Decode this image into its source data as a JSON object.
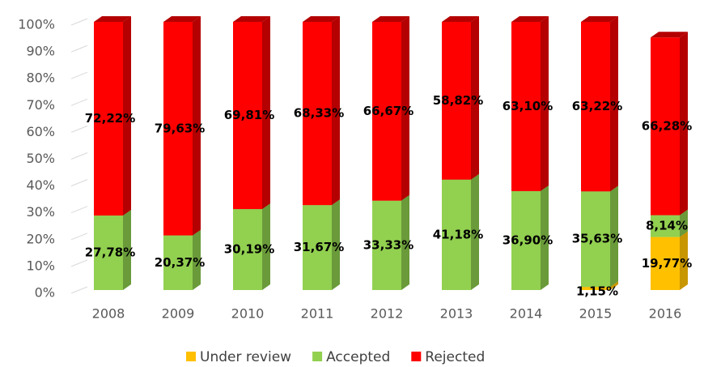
{
  "chart_data": {
    "type": "stacked_bar_3d",
    "categories": [
      "2008",
      "2009",
      "2010",
      "2011",
      "2012",
      "2013",
      "2014",
      "2015",
      "2016"
    ],
    "series": [
      {
        "name": "Under review",
        "color": "#ffc000",
        "side": "#c89600",
        "values": [
          0,
          0,
          0,
          0,
          0,
          0,
          0,
          1.15,
          19.77
        ],
        "value_labels": [
          null,
          null,
          null,
          null,
          null,
          null,
          null,
          "1,15%",
          "19,77%"
        ]
      },
      {
        "name": "Accepted",
        "color": "#92d050",
        "side": "#6a9a3a",
        "values": [
          27.78,
          20.37,
          30.19,
          31.67,
          33.33,
          41.18,
          36.9,
          35.63,
          8.14
        ],
        "value_labels": [
          "27,78%",
          "20,37%",
          "30,19%",
          "31,67%",
          "33,33%",
          "41,18%",
          "36,90%",
          "35,63%",
          "8,14%"
        ]
      },
      {
        "name": "Rejected",
        "color": "#ff0000",
        "side": "#b40000",
        "values": [
          72.22,
          79.63,
          69.81,
          68.33,
          66.67,
          58.82,
          63.1,
          63.22,
          66.28
        ],
        "value_labels": [
          "72,22%",
          "79,63%",
          "69,81%",
          "68,33%",
          "66,67%",
          "58,82%",
          "63,10%",
          "63,22%",
          "66,28%"
        ]
      }
    ],
    "ylim": [
      0,
      100
    ],
    "yticks": [
      {
        "value": 0,
        "label": "0%"
      },
      {
        "value": 10,
        "label": "10%"
      },
      {
        "value": 20,
        "label": "20%"
      },
      {
        "value": 30,
        "label": "30%"
      },
      {
        "value": 40,
        "label": "40%"
      },
      {
        "value": 50,
        "label": "50%"
      },
      {
        "value": 60,
        "label": "60%"
      },
      {
        "value": 70,
        "label": "70%"
      },
      {
        "value": 80,
        "label": "80%"
      },
      {
        "value": 90,
        "label": "90%"
      },
      {
        "value": 100,
        "label": "100%"
      }
    ],
    "legend": "bottom"
  }
}
